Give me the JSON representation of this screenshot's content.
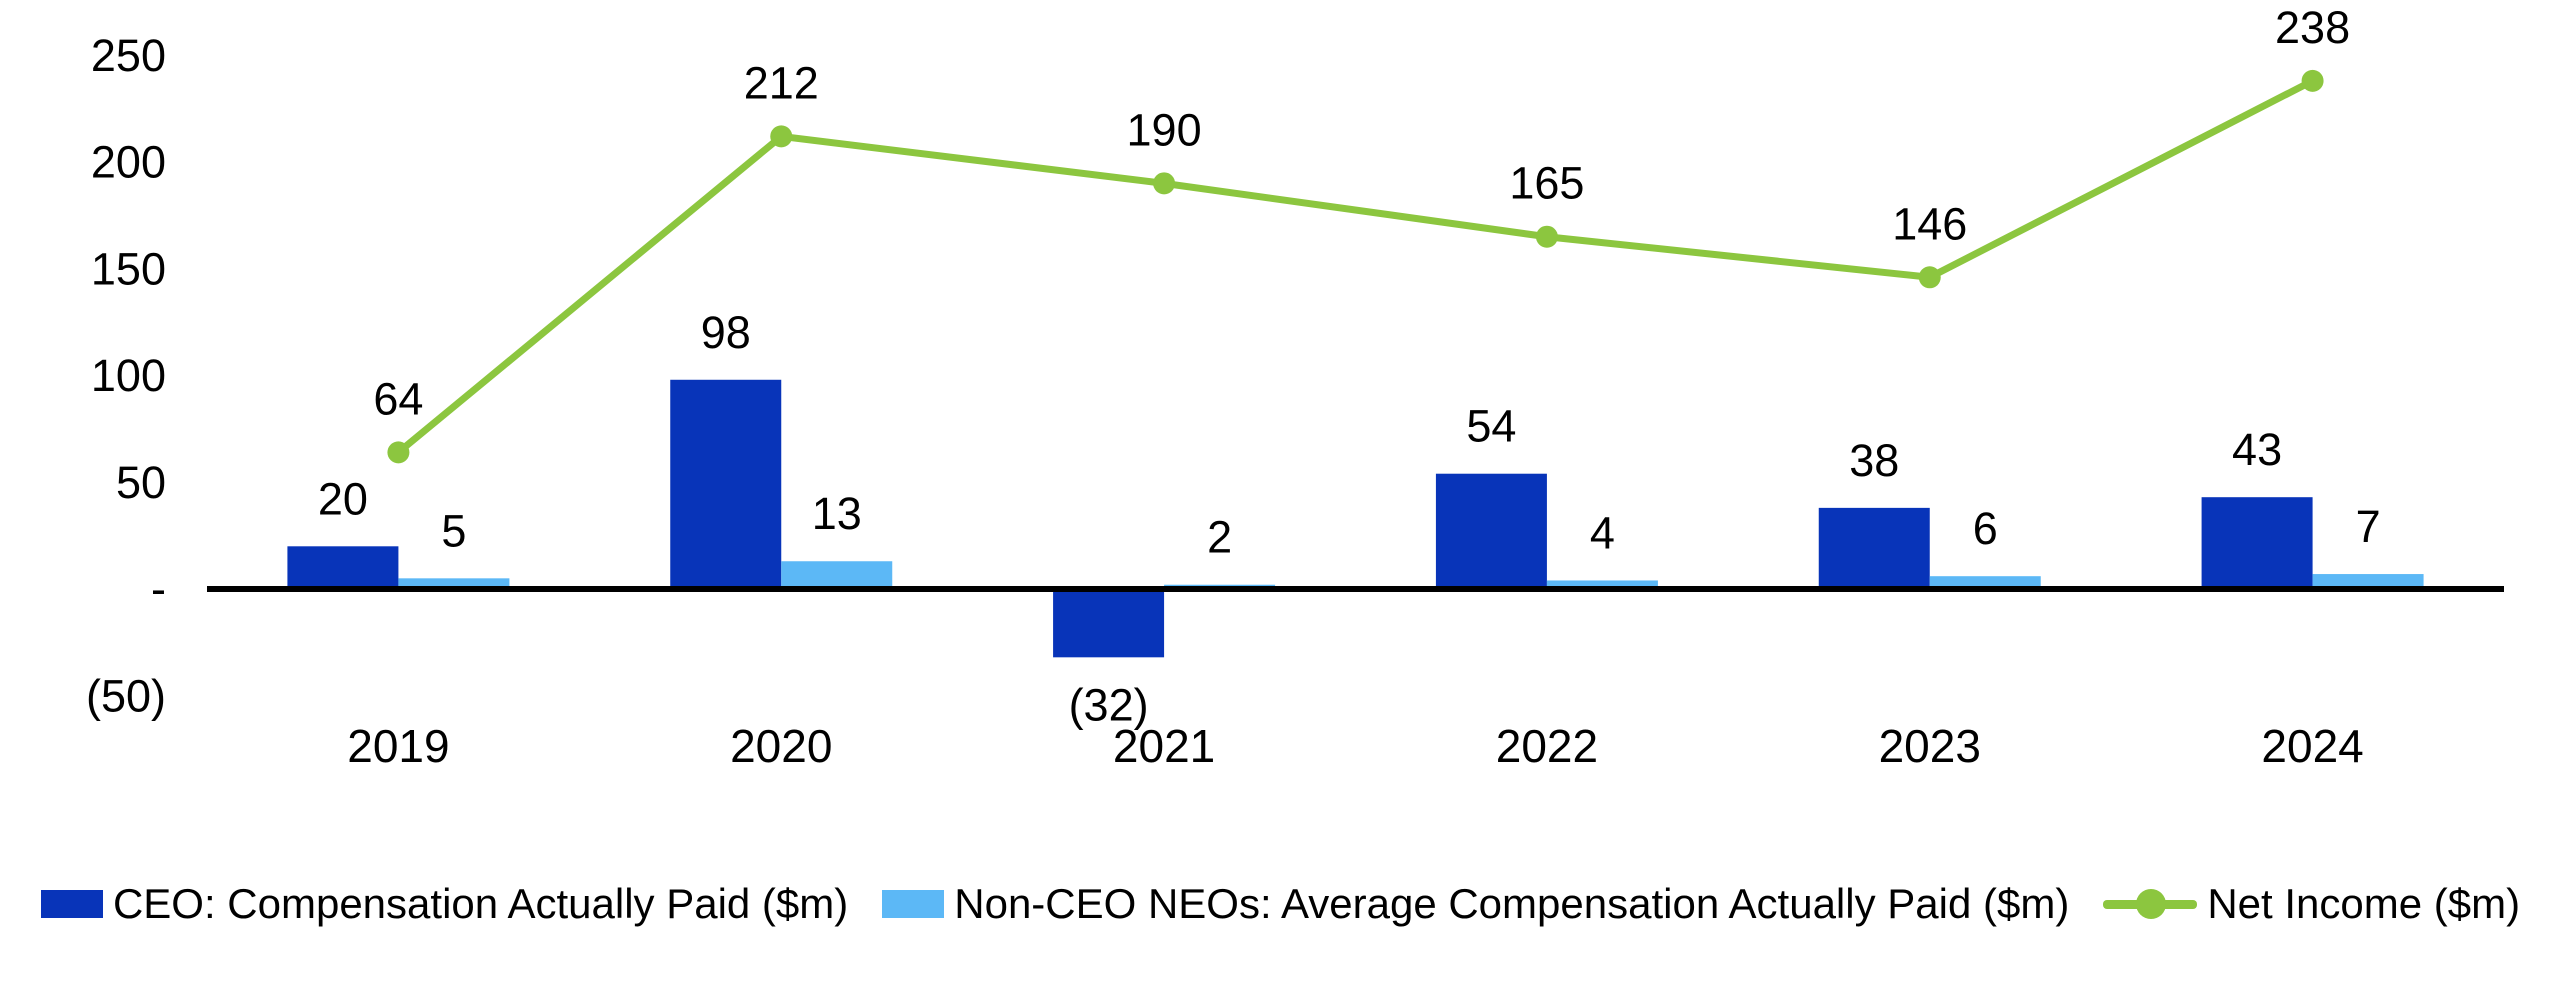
{
  "chart_data": {
    "type": "bar",
    "subtype": "grouped-bar-with-line-overlay",
    "categories": [
      "2019",
      "2020",
      "2021",
      "2022",
      "2023",
      "2024"
    ],
    "series": [
      {
        "name": "CEO: Compensation Actually Paid ($m)",
        "type": "bar",
        "color": "#0834B9",
        "values": [
          20,
          98,
          -32,
          54,
          38,
          43
        ],
        "labels": [
          "20",
          "98",
          "(32)",
          "54",
          "38",
          "43"
        ]
      },
      {
        "name": "Non-CEO NEOs: Average Compensation Actually Paid ($m)",
        "type": "bar",
        "color": "#5CB8F6",
        "values": [
          5,
          13,
          2,
          4,
          6,
          7
        ],
        "labels": [
          "5",
          "13",
          "2",
          "4",
          "6",
          "7"
        ]
      },
      {
        "name": "Net Income ($m)",
        "type": "line",
        "color": "#8CC63F",
        "values": [
          64,
          212,
          190,
          165,
          146,
          238
        ],
        "labels": [
          "64",
          "212",
          "190",
          "165",
          "146",
          "238"
        ]
      }
    ],
    "title": "",
    "xlabel": "",
    "ylabel": "",
    "y_axis": {
      "min": -50,
      "max": 250,
      "ticks": [
        250,
        200,
        150,
        100,
        50,
        0,
        -50
      ],
      "tick_labels": [
        "250",
        "200",
        "150",
        "100",
        "50",
        "-",
        "(50)"
      ]
    },
    "grid": false,
    "legend_position": "bottom",
    "axis_line_color": "#000000",
    "text_color": "#000000",
    "background_color": "#ffffff"
  }
}
